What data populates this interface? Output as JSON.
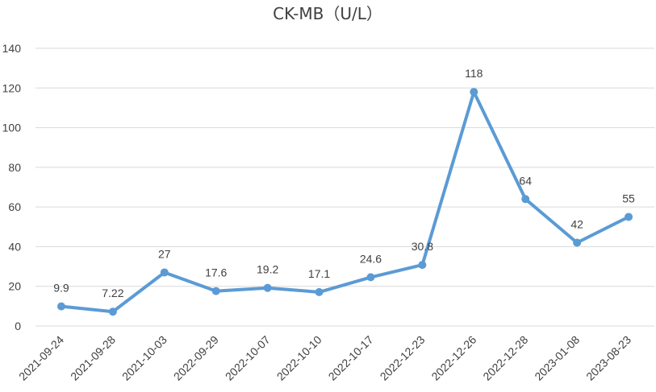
{
  "chart_data": {
    "type": "line",
    "title": "CK-MB（U/L）",
    "xlabel": "",
    "ylabel": "",
    "categories": [
      "2021-09-24",
      "2021-09-28",
      "2021-10-03",
      "2022-09-29",
      "2022-10-07",
      "2022-10-10",
      "2022-10-17",
      "2022-12-23",
      "2022-12-26",
      "2022-12-28",
      "2023-01-08",
      "2023-08-23"
    ],
    "series": [
      {
        "values": [
          9.9,
          7.22,
          27,
          17.6,
          19.2,
          17.1,
          24.6,
          30.8,
          118,
          64,
          42,
          55
        ],
        "data_labels": [
          "9.9",
          "7.22",
          "27",
          "17.6",
          "19.2",
          "17.1",
          "24.6",
          "30.8",
          "118",
          "64",
          "42",
          "55"
        ],
        "color": "#5b9bd5"
      }
    ],
    "ylim": [
      0,
      140
    ],
    "yticks": [
      "0",
      "20",
      "40",
      "60",
      "80",
      "100",
      "120",
      "140"
    ],
    "grid": true,
    "legend": "none",
    "colors": {
      "line": "#5b9bd5",
      "grid": "#d9d9d9",
      "text": "#404040"
    }
  }
}
